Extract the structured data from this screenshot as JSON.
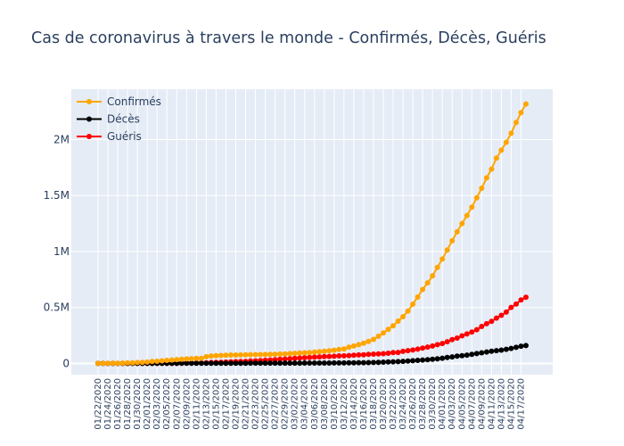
{
  "chart_data": {
    "type": "line",
    "title": "Cas de coronavirus à travers le monde - Confirmés, Décès, Guéris",
    "xlabel": "",
    "ylabel": "",
    "x_start": "01/22/2020",
    "x_end": "04/18/2020",
    "x_tick_labels": [
      "01/22/2020",
      "01/24/2020",
      "01/26/2020",
      "01/28/2020",
      "01/30/2020",
      "02/01/2020",
      "02/03/2020",
      "02/05/2020",
      "02/07/2020",
      "02/09/2020",
      "02/11/2020",
      "02/13/2020",
      "02/15/2020",
      "02/17/2020",
      "02/19/2020",
      "02/21/2020",
      "02/23/2020",
      "02/25/2020",
      "02/27/2020",
      "02/29/2020",
      "03/02/2020",
      "03/04/2020",
      "03/06/2020",
      "03/08/2020",
      "03/10/2020",
      "03/12/2020",
      "03/14/2020",
      "03/16/2020",
      "03/18/2020",
      "03/20/2020",
      "03/22/2020",
      "03/24/2020",
      "03/26/2020",
      "03/28/2020",
      "03/30/2020",
      "04/01/2020",
      "04/03/2020",
      "04/05/2020",
      "04/07/2020",
      "04/09/2020",
      "04/11/2020",
      "04/13/2020",
      "04/15/2020",
      "04/17/2020"
    ],
    "y_tick_labels": [
      "0",
      "0.5M",
      "1M",
      "1.5M",
      "2M"
    ],
    "y_tick_values": [
      0,
      500000,
      1000000,
      1500000,
      2000000
    ],
    "ylim": [
      -100000,
      2450000
    ],
    "grid": true,
    "legend_position": "top-left",
    "series": [
      {
        "name": "Confirmés",
        "color": "#FFA500",
        "values": [
          555,
          654,
          941,
          1434,
          2118,
          2927,
          5578,
          6166,
          8234,
          9927,
          12038,
          16787,
          19881,
          23892,
          27635,
          30794,
          34391,
          37120,
          40150,
          42762,
          44802,
          45221,
          60368,
          66885,
          69030,
          71224,
          73258,
          75136,
          75639,
          76197,
          76819,
          78572,
          78958,
          79561,
          80406,
          81388,
          82746,
          84112,
          86011,
          88369,
          90306,
          92840,
          95120,
          97886,
          101801,
          105847,
          109821,
          113590,
          118620,
          125875,
          128352,
          145205,
          156101,
          167454,
          181574,
          197102,
          214821,
          242570,
          272208,
          304507,
          336953,
          378231,
          418041,
          467653,
          529591,
          593291,
          660706,
          720117,
          782365,
          857487,
          932605,
          1013466,
          1095917,
          1176060,
          1249754,
          1321481,
          1396476,
          1480202,
          1565278,
          1657526,
          1735650,
          1834721,
          1904838,
          1976191,
          2056055,
          2152437,
          2240190,
          2317759
        ]
      },
      {
        "name": "Décès",
        "color": "#000000",
        "values": [
          17,
          18,
          26,
          42,
          56,
          82,
          131,
          133,
          171,
          213,
          259,
          362,
          426,
          492,
          564,
          634,
          719,
          806,
          906,
          1013,
          1113,
          1118,
          1371,
          1523,
          1666,
          1770,
          1868,
          2007,
          2122,
          2247,
          2251,
          2458,
          2469,
          2629,
          2708,
          2770,
          2814,
          2872,
          2941,
          2996,
          3085,
          3160,
          3254,
          3348,
          3460,
          3558,
          3802,
          3988,
          4262,
          4615,
          4720,
          5404,
          5819,
          6440,
          7126,
          7905,
          8733,
          9867,
          11299,
          12973,
          14623,
          16497,
          18615,
          21181,
          23970,
          27198,
          30652,
          33925,
          37582,
          42107,
          46809,
          52983,
          58787,
          64606,
          69374,
          74565,
          81865,
          88338,
          95455,
          102525,
          108502,
          114090,
          119481,
          125983,
          134176,
          143800,
          153821,
          159510
        ]
      },
      {
        "name": "Guéris",
        "color": "#FF0000",
        "values": [
          28,
          30,
          36,
          39,
          52,
          61,
          107,
          126,
          143,
          222,
          284,
          472,
          623,
          852,
          1124,
          1487,
          2011,
          2616,
          3244,
          3946,
          4683,
          5150,
          6295,
          8058,
          9395,
          10865,
          12583,
          14352,
          16121,
          18177,
          18890,
          22886,
          23394,
          25227,
          27905,
          30384,
          33277,
          36711,
          39782,
          42716,
          45602,
          48228,
          51170,
          53796,
          55865,
          58358,
          60694,
          62494,
          64404,
          67003,
          68324,
          70251,
          72624,
          76034,
          78088,
          80840,
          83207,
          84854,
          87256,
          91569,
          97887,
          98334,
          108000,
          114000,
          120000,
          128000,
          137000,
          146000,
          156000,
          168000,
          178000,
          194000,
          213000,
          227000,
          247000,
          263000,
          280000,
          302000,
          330000,
          355000,
          376000,
          405000,
          430000,
          459000,
          501000,
          530000,
          567000,
          592000
        ]
      }
    ]
  }
}
